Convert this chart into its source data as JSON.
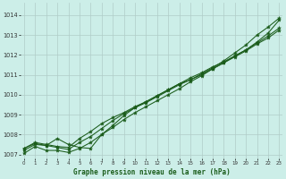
{
  "title": "Graphe pression niveau de la mer (hPa)",
  "bg_color": "#cceee8",
  "line_color": "#1a5c1a",
  "xlim": [
    -0.3,
    23.3
  ],
  "ylim": [
    1006.8,
    1014.6
  ],
  "yticks": [
    1007,
    1008,
    1009,
    1010,
    1011,
    1012,
    1013,
    1014
  ],
  "xticks": [
    0,
    1,
    2,
    3,
    4,
    5,
    6,
    7,
    8,
    9,
    10,
    11,
    12,
    13,
    14,
    15,
    16,
    17,
    18,
    19,
    20,
    21,
    22,
    23
  ],
  "series": [
    [
      1007.2,
      1007.5,
      1007.45,
      1007.8,
      1007.5,
      1007.35,
      1007.3,
      1008.0,
      1008.45,
      1008.95,
      1009.35,
      1009.65,
      1009.95,
      1010.25,
      1010.55,
      1010.75,
      1011.05,
      1011.35,
      1011.7,
      1012.1,
      1012.5,
      1013.0,
      1013.4,
      1013.85
    ],
    [
      1007.3,
      1007.55,
      1007.45,
      1007.35,
      1007.25,
      1007.6,
      1007.9,
      1008.3,
      1008.7,
      1009.05,
      1009.35,
      1009.6,
      1009.9,
      1010.2,
      1010.5,
      1010.75,
      1011.0,
      1011.3,
      1011.6,
      1011.9,
      1012.2,
      1012.55,
      1012.85,
      1013.25
    ],
    [
      1007.05,
      1007.4,
      1007.2,
      1007.2,
      1007.1,
      1007.3,
      1007.6,
      1008.0,
      1008.35,
      1008.75,
      1009.1,
      1009.4,
      1009.7,
      1010.0,
      1010.3,
      1010.65,
      1010.95,
      1011.3,
      1011.6,
      1011.95,
      1012.25,
      1012.65,
      1013.1,
      1013.75
    ],
    [
      1007.3,
      1007.6,
      1007.5,
      1007.4,
      1007.35,
      1007.8,
      1008.15,
      1008.55,
      1008.85,
      1009.1,
      1009.4,
      1009.65,
      1009.95,
      1010.25,
      1010.55,
      1010.85,
      1011.1,
      1011.4,
      1011.65,
      1011.95,
      1012.25,
      1012.6,
      1012.95,
      1013.35
    ]
  ]
}
